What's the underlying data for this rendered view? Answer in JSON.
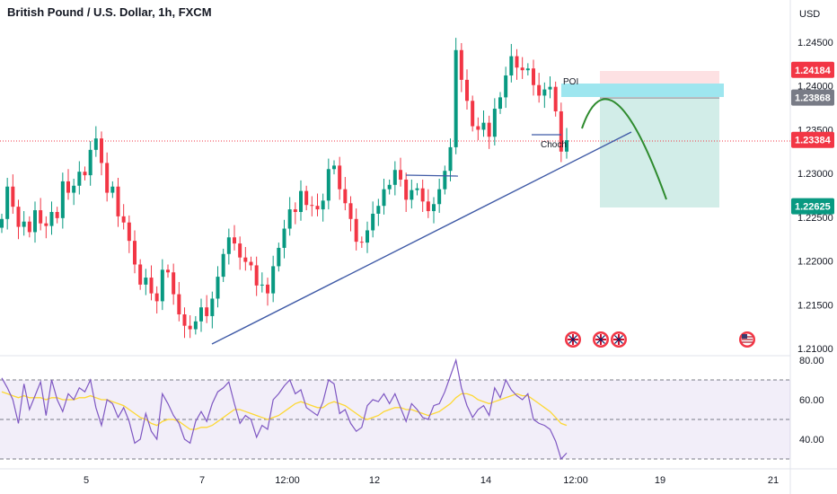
{
  "chart": {
    "title": "British Pound / U.S. Dollar, 1h, FXCM",
    "currency": "USD"
  },
  "chart_data": {
    "type": "candlestick",
    "symbol": "GBP/USD",
    "interval": "1h",
    "price_axis": {
      "ticks": [
        "1.24500",
        "1.24000",
        "1.23500",
        "1.23000",
        "1.22500",
        "1.22000",
        "1.21500",
        "1.21000"
      ],
      "range": [
        1.208,
        1.2505
      ]
    },
    "time_axis": {
      "ticks": [
        "5",
        "7",
        "12:00",
        "12",
        "14",
        "12:00",
        "19",
        "21"
      ]
    },
    "price_badges": [
      {
        "label": "1.24184",
        "value": 1.24184,
        "color": "#f23645"
      },
      {
        "label": "1.23868",
        "value": 1.23868,
        "color": "#787b86"
      },
      {
        "label": "1.23384",
        "value": 1.23384,
        "color": "#f23645"
      },
      {
        "label": "1.22625",
        "value": 1.22625,
        "color": "#089981"
      }
    ],
    "annotations": {
      "poi": "POI",
      "choch": "Choch"
    },
    "closes": [
      1.2248,
      1.2285,
      1.2262,
      1.2239,
      1.2245,
      1.2233,
      1.2258,
      1.2243,
      1.224,
      1.2256,
      1.2249,
      1.2291,
      1.2278,
      1.2286,
      1.2302,
      1.2298,
      1.2327,
      1.234,
      1.2312,
      1.2278,
      1.2285,
      1.2251,
      1.2244,
      1.2223,
      1.2196,
      1.2173,
      1.2181,
      1.2163,
      1.2154,
      1.219,
      1.2187,
      1.2162,
      1.2139,
      1.2126,
      1.2122,
      1.2131,
      1.2147,
      1.2137,
      1.2157,
      1.2182,
      1.2208,
      1.2227,
      1.222,
      1.2204,
      1.2199,
      1.2195,
      1.2172,
      1.2173,
      1.2163,
      1.2194,
      1.2215,
      1.2237,
      1.2259,
      1.2256,
      1.228,
      1.2264,
      1.2263,
      1.2259,
      1.2269,
      1.2305,
      1.2309,
      1.2282,
      1.2266,
      1.2248,
      1.2222,
      1.2221,
      1.2235,
      1.2254,
      1.2263,
      1.2282,
      1.2287,
      1.2304,
      1.2293,
      1.227,
      1.2281,
      1.2283,
      1.2268,
      1.2257,
      1.2265,
      1.2282,
      1.2303,
      1.233,
      1.2441,
      1.2407,
      1.2383,
      1.2354,
      1.235,
      1.2358,
      1.2342,
      1.2374,
      1.2387,
      1.2412,
      1.2434,
      1.2421,
      1.2418,
      1.242,
      1.2401,
      1.2389,
      1.2396,
      1.2399,
      1.2371,
      1.2325,
      1.2338
    ],
    "rsi": {
      "ticks": [
        "80.00",
        "60.00",
        "40.00"
      ],
      "levels": [
        70,
        50,
        30
      ],
      "range": [
        27,
        82
      ],
      "values": [
        71,
        66,
        60,
        48,
        68,
        55,
        62,
        69,
        52,
        70,
        60,
        54,
        63,
        60,
        66,
        64,
        70,
        56,
        47,
        60,
        58,
        51,
        56,
        49,
        38,
        40,
        53,
        44,
        40,
        63,
        58,
        52,
        48,
        40,
        38,
        49,
        54,
        49,
        58,
        64,
        66,
        69,
        58,
        48,
        52,
        50,
        41,
        47,
        45,
        60,
        63,
        67,
        70,
        63,
        65,
        56,
        54,
        52,
        59,
        70,
        68,
        53,
        55,
        48,
        44,
        46,
        57,
        60,
        59,
        63,
        58,
        63,
        56,
        49,
        58,
        55,
        51,
        50,
        57,
        58,
        64,
        72,
        80,
        66,
        57,
        51,
        55,
        57,
        52,
        66,
        61,
        70,
        65,
        62,
        60,
        63,
        50,
        48,
        47,
        45,
        39,
        30,
        33
      ],
      "ma": [
        64,
        63,
        62,
        61,
        62,
        61,
        61,
        61,
        60,
        61,
        61,
        60,
        60,
        60,
        61,
        61,
        62,
        61,
        60,
        60,
        59,
        58,
        57,
        55,
        53,
        51,
        50,
        48,
        47,
        49,
        50,
        50,
        49,
        47,
        45,
        45,
        46,
        46,
        47,
        49,
        51,
        53,
        55,
        55,
        54,
        53,
        52,
        51,
        50,
        51,
        52,
        54,
        56,
        58,
        59,
        58,
        57,
        56,
        56,
        58,
        59,
        58,
        57,
        55,
        53,
        51,
        50,
        51,
        52,
        54,
        55,
        56,
        56,
        55,
        55,
        54,
        53,
        52,
        53,
        54,
        56,
        58,
        61,
        63,
        63,
        62,
        60,
        59,
        58,
        59,
        60,
        61,
        62,
        63,
        62,
        62,
        60,
        58,
        56,
        54,
        51,
        48,
        47
      ]
    }
  }
}
